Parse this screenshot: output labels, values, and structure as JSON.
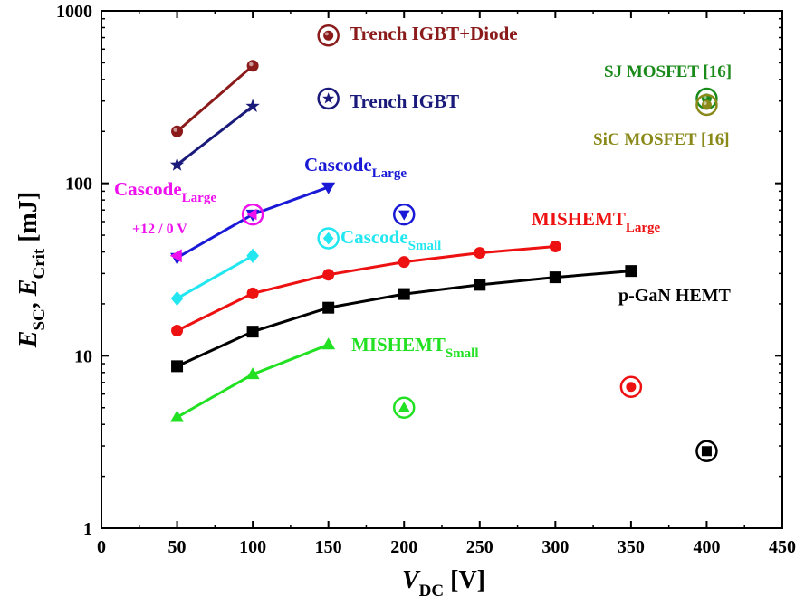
{
  "chart_data": {
    "type": "scatter",
    "xscale": "linear",
    "yscale": "log",
    "xlim": [
      0,
      450
    ],
    "ylim": [
      1,
      1000
    ],
    "xticks": [
      0,
      50,
      100,
      150,
      200,
      250,
      300,
      350,
      400,
      450
    ],
    "yticks": [
      1,
      10,
      100,
      1000
    ],
    "xtick_labels": [
      "0",
      "50",
      "100",
      "150",
      "200",
      "250",
      "300",
      "350",
      "400",
      "450"
    ],
    "ytick_labels": [
      "1",
      "10",
      "100",
      "1000"
    ],
    "xlabel": {
      "main": "V",
      "sub": "DC",
      "unit": " [V]"
    },
    "ylabel": {
      "e1": "E",
      "s1": "SC",
      "sep": ", ",
      "e2": "E",
      "s2": "Crit",
      "unit": " [mJ]"
    },
    "series": [
      {
        "key": "trench_igbt_diode",
        "color": "#8b1a1a",
        "marker": "ball",
        "line": true,
        "x": [
          50,
          100
        ],
        "y": [
          200,
          480
        ]
      },
      {
        "key": "trench_igbt",
        "color": "#1a1a7a",
        "marker": "star",
        "line": true,
        "x": [
          50,
          100
        ],
        "y": [
          128,
          280
        ]
      },
      {
        "key": "cascode_large",
        "color": "#1a1ad6",
        "marker": "tri-down",
        "line": true,
        "x": [
          50,
          100,
          150
        ],
        "y": [
          37,
          66,
          95
        ]
      },
      {
        "key": "cascode_small",
        "color": "#22e6f0",
        "marker": "diamond",
        "line": true,
        "x": [
          50,
          100
        ],
        "y": [
          21.5,
          38
        ]
      },
      {
        "key": "mishemt_large",
        "color": "#ee1111",
        "marker": "circle",
        "line": true,
        "x": [
          50,
          100,
          150,
          200,
          250,
          300
        ],
        "y": [
          14,
          23,
          29.5,
          35,
          39.5,
          43
        ]
      },
      {
        "key": "pgan_hemt",
        "color": "#000000",
        "marker": "square",
        "line": true,
        "x": [
          50,
          100,
          150,
          200,
          250,
          300,
          350
        ],
        "y": [
          8.7,
          13.8,
          19,
          22.8,
          25.8,
          28.5,
          31
        ]
      },
      {
        "key": "mishemt_small",
        "color": "#22e022",
        "marker": "tri-up",
        "line": true,
        "x": [
          50,
          100,
          150
        ],
        "y": [
          4.4,
          7.8,
          11.6
        ]
      },
      {
        "key": "cascode_large_gate",
        "color": "#ee11ee",
        "marker": "tri-left",
        "line": false,
        "x": [
          50
        ],
        "y": [
          38
        ]
      }
    ],
    "critical_points": [
      {
        "key": "trench_igbt_diode_crit",
        "color": "#8b1a1a",
        "marker": "ball",
        "x": 150,
        "y": 720
      },
      {
        "key": "trench_igbt_crit",
        "color": "#1a1a7a",
        "marker": "star",
        "x": 150,
        "y": 310
      },
      {
        "key": "cascode_large_gate_crit",
        "color": "#ee11ee",
        "marker": "tri-left",
        "x": 100,
        "y": 66
      },
      {
        "key": "cascode_large_crit",
        "color": "#1a1ad6",
        "marker": "tri-down",
        "x": 200,
        "y": 66
      },
      {
        "key": "cascode_small_crit",
        "color": "#22e6f0",
        "marker": "diamond",
        "x": 150,
        "y": 48
      },
      {
        "key": "mishemt_small_crit",
        "color": "#22e022",
        "marker": "tri-up",
        "x": 200,
        "y": 5
      },
      {
        "key": "mishemt_large_crit",
        "color": "#ee1111",
        "marker": "circle",
        "x": 350,
        "y": 6.6
      },
      {
        "key": "pgan_hemt_crit",
        "color": "#000000",
        "marker": "square",
        "x": 400,
        "y": 2.8
      },
      {
        "key": "sj_mosfet_crit",
        "color": "#1a8a1a",
        "marker": "ball",
        "x": 400,
        "y": 310
      },
      {
        "key": "sic_mosfet_crit",
        "color": "#8a8a1a",
        "marker": "ball",
        "x": 400,
        "y": 285
      }
    ],
    "annotations": [
      {
        "key": "trench_igbt_diode",
        "text": "Trench IGBT+Diode",
        "sub": "",
        "color": "#8b1a1a"
      },
      {
        "key": "trench_igbt",
        "text": "Trench IGBT",
        "sub": "",
        "color": "#1a1a7a"
      },
      {
        "key": "sj_mosfet",
        "text": "SJ MOSFET [16]",
        "sub": "",
        "color": "#1a8a1a"
      },
      {
        "key": "sic_mosfet",
        "text": "SiC MOSFET [16]",
        "sub": "",
        "color": "#8a8a1a"
      },
      {
        "key": "cascode_large_blue",
        "text": "Cascode",
        "sub": "Large",
        "color": "#1a1ad6"
      },
      {
        "key": "cascode_large_magenta",
        "text": "Cascode",
        "sub": "Large",
        "color": "#ee11ee"
      },
      {
        "key": "gate_voltage",
        "text": "+12 / 0 V",
        "sub": "",
        "color": "#ee11ee"
      },
      {
        "key": "cascode_small",
        "text": "Cascode",
        "sub": "Small",
        "color": "#22e6f0"
      },
      {
        "key": "mishemt_large",
        "text": "MISHEMT",
        "sub": "Large",
        "color": "#ee1111"
      },
      {
        "key": "pgan_hemt",
        "text": "p-GaN HEMT",
        "sub": "",
        "color": "#000000"
      },
      {
        "key": "mishemt_small",
        "text": "MISHEMT",
        "sub": "Small",
        "color": "#22e022"
      }
    ]
  }
}
